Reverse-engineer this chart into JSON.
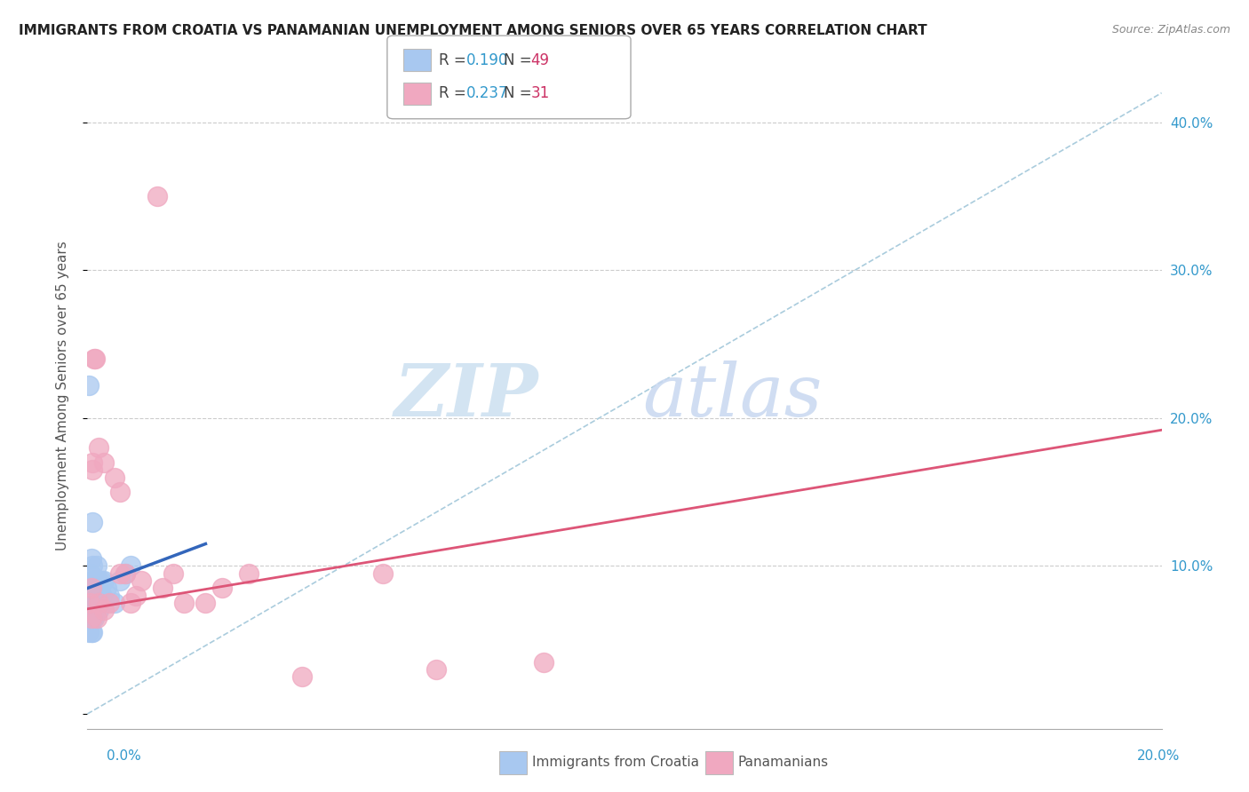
{
  "title": "IMMIGRANTS FROM CROATIA VS PANAMANIAN UNEMPLOYMENT AMONG SENIORS OVER 65 YEARS CORRELATION CHART",
  "source": "Source: ZipAtlas.com",
  "ylabel": "Unemployment Among Seniors over 65 years",
  "xlim": [
    0,
    0.2
  ],
  "ylim": [
    -0.01,
    0.44
  ],
  "yticks": [
    0.0,
    0.1,
    0.2,
    0.3,
    0.4
  ],
  "ytick_labels": [
    "",
    "10.0%",
    "20.0%",
    "30.0%",
    "40.0%"
  ],
  "legend1_r": "0.190",
  "legend1_n": "49",
  "legend2_r": "0.237",
  "legend2_n": "31",
  "legend1_label": "Immigrants from Croatia",
  "legend2_label": "Panamanians",
  "blue_color": "#a8c8f0",
  "pink_color": "#f0a8c0",
  "blue_line_color": "#3366bb",
  "pink_line_color": "#dd5577",
  "ref_line_color": "#aaccdd",
  "legend_r_color": "#3399cc",
  "legend_n_color": "#cc3366",
  "watermark_zip_color": "#cce0f0",
  "watermark_atlas_color": "#c8d8f0",
  "blue_scatter_x": [
    0.0003,
    0.0003,
    0.0003,
    0.0004,
    0.0004,
    0.0005,
    0.0005,
    0.0006,
    0.0006,
    0.0007,
    0.0007,
    0.0008,
    0.0008,
    0.0009,
    0.0009,
    0.001,
    0.001,
    0.001,
    0.001,
    0.001,
    0.001,
    0.0012,
    0.0012,
    0.0013,
    0.0013,
    0.0014,
    0.0014,
    0.0015,
    0.0015,
    0.0016,
    0.0016,
    0.0017,
    0.0017,
    0.0018,
    0.0018,
    0.002,
    0.002,
    0.002,
    0.0022,
    0.0023,
    0.0025,
    0.0027,
    0.003,
    0.0035,
    0.004,
    0.005,
    0.006,
    0.007,
    0.008
  ],
  "blue_scatter_y": [
    0.222,
    0.065,
    0.055,
    0.075,
    0.065,
    0.085,
    0.075,
    0.095,
    0.085,
    0.105,
    0.055,
    0.08,
    0.065,
    0.09,
    0.07,
    0.13,
    0.1,
    0.085,
    0.075,
    0.065,
    0.055,
    0.09,
    0.08,
    0.07,
    0.065,
    0.09,
    0.08,
    0.09,
    0.075,
    0.085,
    0.075,
    0.09,
    0.08,
    0.1,
    0.085,
    0.09,
    0.08,
    0.07,
    0.085,
    0.075,
    0.09,
    0.08,
    0.09,
    0.085,
    0.08,
    0.075,
    0.09,
    0.095,
    0.1
  ],
  "blue_line_x": [
    0.0,
    0.022
  ],
  "blue_line_y": [
    0.085,
    0.115
  ],
  "pink_scatter_x": [
    0.0005,
    0.0007,
    0.0008,
    0.001,
    0.001,
    0.0013,
    0.0015,
    0.0018,
    0.002,
    0.002,
    0.003,
    0.003,
    0.004,
    0.005,
    0.006,
    0.006,
    0.007,
    0.008,
    0.009,
    0.01,
    0.013,
    0.014,
    0.016,
    0.018,
    0.022,
    0.025,
    0.03,
    0.04,
    0.055,
    0.065,
    0.085
  ],
  "pink_scatter_y": [
    0.075,
    0.085,
    0.065,
    0.17,
    0.165,
    0.24,
    0.24,
    0.065,
    0.075,
    0.18,
    0.17,
    0.07,
    0.075,
    0.16,
    0.15,
    0.095,
    0.095,
    0.075,
    0.08,
    0.09,
    0.35,
    0.085,
    0.095,
    0.075,
    0.075,
    0.085,
    0.095,
    0.025,
    0.095,
    0.03,
    0.035
  ],
  "pink_line_x": [
    0.0,
    0.2
  ],
  "pink_line_y": [
    0.071,
    0.192
  ]
}
